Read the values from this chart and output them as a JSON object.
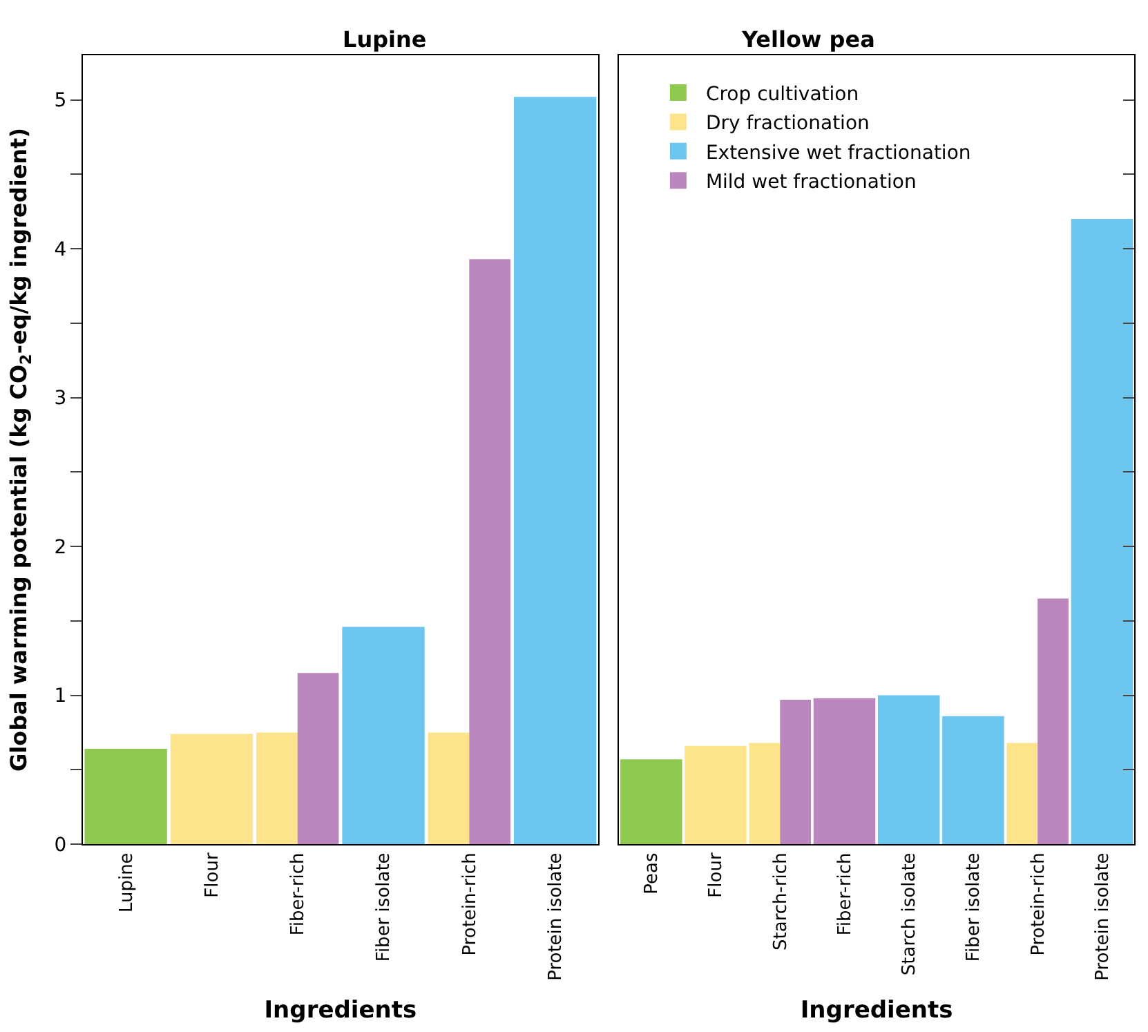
{
  "chart_data": [
    {
      "type": "bar",
      "title": "Lupine",
      "xlabel": "Ingredients",
      "ylabel": "Global warming potential (kg CO$_{2}$-eq/kg ingredient)",
      "categories": [
        "Lupine",
        "Flour",
        "Fiber-rich",
        "Fiber isolate",
        "Protein-rich",
        "Protein isolate"
      ],
      "series": [
        {
          "color": "#8fc94f",
          "values": [
            0.64,
            null,
            null,
            null,
            null,
            null
          ]
        },
        {
          "color": "#fde48c",
          "values": [
            null,
            0.74,
            0.75,
            null,
            0.75,
            null
          ]
        },
        {
          "color": "#6cc6ef",
          "values": [
            null,
            null,
            null,
            1.46,
            null,
            5.02
          ]
        },
        {
          "color": "#bb86bd",
          "values": [
            null,
            null,
            1.15,
            null,
            3.93,
            null
          ]
        }
      ],
      "ylim": [
        0,
        5.3
      ],
      "yticks": [
        0,
        {
          "value": 0.5,
          "label": null
        },
        1,
        {
          "value": 1.5,
          "label": null
        },
        2,
        {
          "value": 2.5,
          "label": null
        },
        3,
        {
          "value": 3.5,
          "label": null
        },
        4,
        {
          "value": 4.5,
          "label": null
        },
        5
      ],
      "legend": false
    },
    {
      "type": "bar",
      "title": "Yellow pea",
      "xlabel": "Ingredients",
      "categories": [
        "Peas",
        "Flour",
        "Starch-rich",
        "Fiber-rich",
        "Starch isolate",
        "Fiber isolate",
        "Protein-rich",
        "Protein isolate"
      ],
      "series": [
        {
          "name": "Crop cultivation",
          "color": "#8fc94f",
          "values": [
            0.57,
            null,
            null,
            null,
            null,
            null,
            null,
            null
          ]
        },
        {
          "name": "Dry fractionation",
          "color": "#fde48c",
          "values": [
            null,
            0.66,
            0.68,
            null,
            null,
            null,
            0.68,
            null
          ]
        },
        {
          "name": "Extensive wet fractionation",
          "color": "#6cc6ef",
          "values": [
            null,
            null,
            null,
            null,
            1.0,
            0.86,
            null,
            4.2
          ]
        },
        {
          "name": "Mild wet fractionation",
          "color": "#bb86bd",
          "values": [
            null,
            null,
            0.97,
            0.98,
            null,
            null,
            1.65,
            null
          ]
        }
      ],
      "ylim": [
        0,
        5.3
      ],
      "yticks": [
        0,
        {
          "value": 0.5,
          "label": null
        },
        1,
        {
          "value": 1.5,
          "label": null
        },
        2,
        {
          "value": 2.5,
          "label": null
        },
        3,
        {
          "value": 3.5,
          "label": null
        },
        4,
        {
          "value": 4.5,
          "label": null
        },
        5
      ],
      "tick_labels": "x",
      "legend": "top left"
    }
  ]
}
